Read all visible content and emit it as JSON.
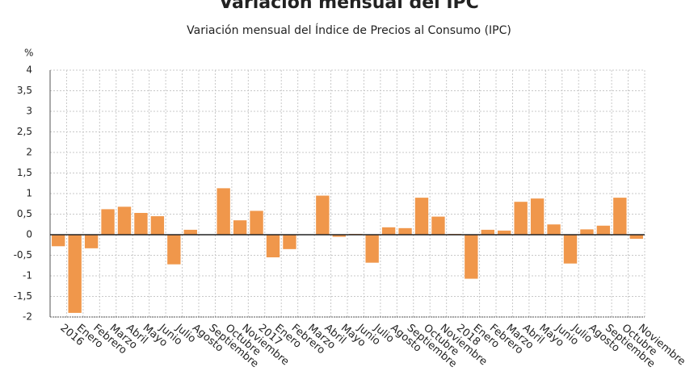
{
  "chart_data": {
    "type": "bar",
    "title": "Variación mensual del IPC",
    "subtitle": "Variación mensual del Índice de Precios al Consumo (IPC)",
    "y_label": "%",
    "categories": [
      "2016",
      "Enero",
      "Febrero",
      "Marzo",
      "Abril",
      "Mayo",
      "Junio",
      "Julio",
      "Agosto",
      "Septiembre",
      "Octubre",
      "Noviembre",
      "2017",
      "Enero",
      "Febrero",
      "Marzo",
      "Abril",
      "Mayo",
      "Junio",
      "Julio",
      "Agosto",
      "Septiembre",
      "Octubre",
      "Noviembre",
      "2018",
      "Enero",
      "Febrero",
      "Marzo",
      "Abril",
      "Mayo",
      "Junio",
      "Julio",
      "Agosto",
      "Septiembre",
      "Octubre",
      "Noviembre"
    ],
    "values": [
      -0.28,
      -1.9,
      -0.33,
      0.62,
      0.68,
      0.53,
      0.45,
      -0.72,
      0.12,
      0,
      1.13,
      0.35,
      0.58,
      -0.55,
      -0.35,
      0.01,
      0.95,
      -0.05,
      0.02,
      -0.68,
      0.18,
      0.16,
      0.9,
      0.44,
      0.02,
      -1.07,
      0.12,
      0.1,
      0.8,
      0.88,
      0.25,
      -0.7,
      0.13,
      0.22,
      0.9,
      -0.1
    ],
    "color": "#f0974b",
    "ylim": [
      -2,
      4
    ],
    "yticks": [
      -2,
      {
        "value": -1.5,
        "label": "-1,5"
      },
      -1,
      {
        "value": -0.5,
        "label": "-0,5"
      },
      0,
      {
        "value": 0.5,
        "label": "0,5"
      },
      1,
      {
        "value": 1.5,
        "label": "1,5"
      },
      2,
      {
        "value": 2.5,
        "label": "2,5"
      },
      3,
      {
        "value": 3.5,
        "label": "3,5"
      },
      4
    ],
    "grid": true
  }
}
